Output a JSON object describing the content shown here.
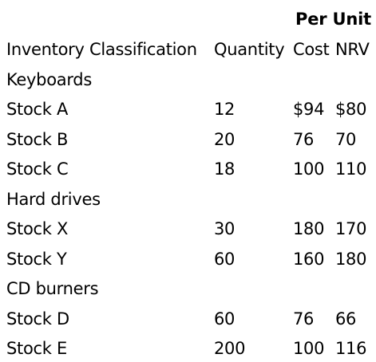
{
  "header": {
    "group_label": "Per Unit",
    "columns": {
      "classification": "Inventory Classification",
      "quantity": "Quantity",
      "cost": "Cost",
      "nrv": "NRV"
    }
  },
  "groups": [
    {
      "name": "Keyboards",
      "rows": [
        {
          "item": "Stock A",
          "quantity": "12",
          "cost": "$94",
          "nrv": "$80"
        },
        {
          "item": "Stock B",
          "quantity": "20",
          "cost": "76",
          "nrv": "70"
        },
        {
          "item": "Stock C",
          "quantity": "18",
          "cost": "100",
          "nrv": "110"
        }
      ]
    },
    {
      "name": "Hard drives",
      "rows": [
        {
          "item": "Stock X",
          "quantity": "30",
          "cost": "180",
          "nrv": "170"
        },
        {
          "item": "Stock Y",
          "quantity": "60",
          "cost": "160",
          "nrv": "180"
        }
      ]
    },
    {
      "name": "CD burners",
      "rows": [
        {
          "item": "Stock D",
          "quantity": "60",
          "cost": "76",
          "nrv": "66"
        },
        {
          "item": "Stock E",
          "quantity": "200",
          "cost": "100",
          "nrv": "116"
        }
      ]
    }
  ]
}
